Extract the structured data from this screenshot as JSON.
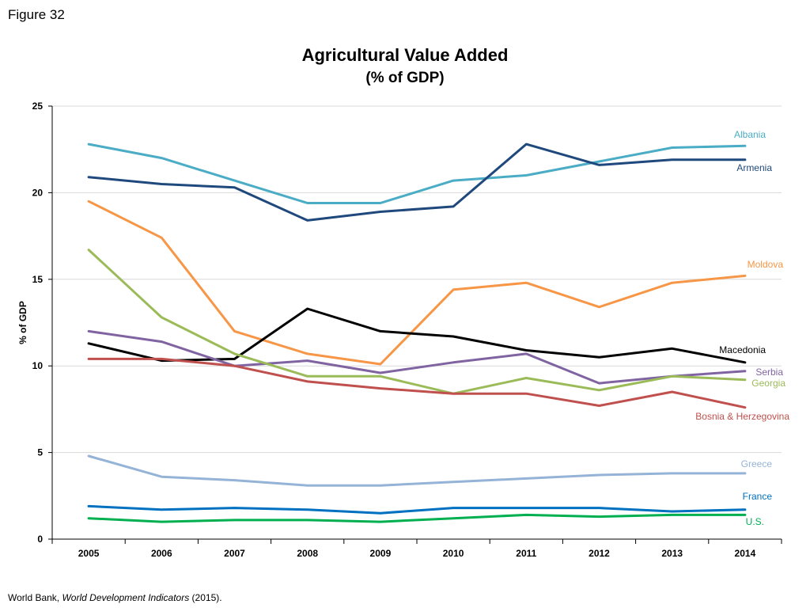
{
  "figure_label": "Figure 32",
  "source": {
    "prefix": "World Bank, ",
    "title": "World Development Indicators",
    "suffix": " (2015)."
  },
  "chart_data": {
    "type": "line",
    "title": "Agricultural Value Added",
    "subtitle": "(% of GDP)",
    "xlabel": "",
    "ylabel": "% of GDP",
    "ylim": [
      0,
      25
    ],
    "yticks": [
      0,
      5,
      10,
      15,
      20,
      25
    ],
    "grid": true,
    "categories": [
      "2005",
      "2006",
      "2007",
      "2008",
      "2009",
      "2010",
      "2011",
      "2012",
      "2013",
      "2014"
    ],
    "series": [
      {
        "name": "Albania",
        "color": "#4bacc6",
        "values": [
          22.8,
          22.0,
          20.7,
          19.4,
          19.4,
          20.7,
          21.0,
          21.8,
          22.6,
          22.7
        ]
      },
      {
        "name": "Armenia",
        "color": "#1f497d",
        "values": [
          20.9,
          20.5,
          20.3,
          18.4,
          18.9,
          19.2,
          22.8,
          21.6,
          21.9,
          21.9
        ]
      },
      {
        "name": "Moldova",
        "color": "#f79646",
        "values": [
          19.5,
          17.4,
          12.0,
          10.7,
          10.1,
          14.4,
          14.8,
          13.4,
          14.8,
          15.2
        ]
      },
      {
        "name": "Macedonia",
        "color": "#000000",
        "values": [
          11.3,
          10.3,
          10.4,
          13.3,
          12.0,
          11.7,
          10.9,
          10.5,
          11.0,
          10.2
        ]
      },
      {
        "name": "Serbia",
        "color": "#8064a2",
        "values": [
          12.0,
          11.4,
          10.0,
          10.3,
          9.6,
          10.2,
          10.7,
          9.0,
          9.4,
          9.7
        ]
      },
      {
        "name": "Georgia",
        "color": "#9bbb59",
        "values": [
          16.7,
          12.8,
          10.7,
          9.4,
          9.4,
          8.4,
          9.3,
          8.6,
          9.4,
          9.2
        ]
      },
      {
        "name": "Bosnia & Herzegovina",
        "color": "#c0504d",
        "values": [
          10.4,
          10.4,
          10.0,
          9.1,
          8.7,
          8.4,
          8.4,
          7.7,
          8.5,
          7.6
        ]
      },
      {
        "name": "Greece",
        "color": "#95b3d7",
        "values": [
          4.8,
          3.6,
          3.4,
          3.1,
          3.1,
          3.3,
          3.5,
          3.7,
          3.8,
          3.8
        ]
      },
      {
        "name": "France",
        "color": "#0070c0",
        "values": [
          1.9,
          1.7,
          1.8,
          1.7,
          1.5,
          1.8,
          1.8,
          1.8,
          1.6,
          1.7
        ]
      },
      {
        "name": "U.S.",
        "color": "#00b050",
        "values": [
          1.2,
          1.0,
          1.1,
          1.1,
          1.0,
          1.2,
          1.4,
          1.3,
          1.4,
          1.4
        ]
      }
    ]
  }
}
